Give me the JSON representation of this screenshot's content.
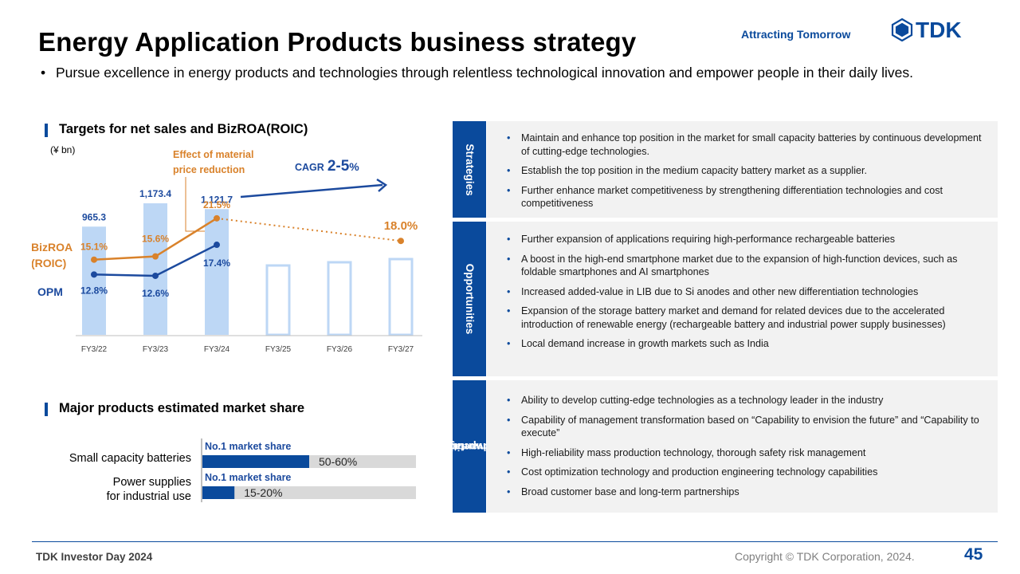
{
  "header": {
    "title": "Energy Application Products business strategy",
    "tagline": "Attracting Tomorrow",
    "logo_text": "TDK",
    "subtitle": "Pursue excellence in energy products and technologies through relentless technological innovation and empower people in their daily lives."
  },
  "colors": {
    "brand": "#0a4a9c",
    "bar_fill": "#bdd7f5",
    "bar_outline": "#bdd7f5",
    "roic_line": "#d9822b",
    "opm_line": "#1c4a9e",
    "panel_bg": "#f2f2f2",
    "share_track": "#d9d9d9"
  },
  "targets_section": {
    "heading": "Targets for net sales and BizROA(ROIC)",
    "unit": "(¥ bn)",
    "note_material": "Effect of material price reduction",
    "cagr_prefix": "CAGR",
    "cagr_value": "2-5",
    "cagr_suffix": "%",
    "roic_label": "BizROA (ROIC)",
    "opm_label": "OPM"
  },
  "chart_data": {
    "type": "bar",
    "categories": [
      "FY3/22",
      "FY3/23",
      "FY3/24",
      "FY3/25",
      "FY3/26",
      "FY3/27"
    ],
    "series": [
      {
        "name": "Net sales",
        "values": [
          965.3,
          1173.4,
          1121.7,
          null,
          null,
          null
        ],
        "labels": [
          "965.3",
          "1,173.4",
          "1,121.7",
          "",
          "",
          ""
        ],
        "target_outline": [
          false,
          false,
          false,
          true,
          true,
          true
        ]
      },
      {
        "name": "BizROA (ROIC)",
        "values": [
          15.1,
          15.6,
          21.5,
          null,
          null,
          18.0
        ],
        "labels": [
          "15.1%",
          "15.6%",
          "21.5%",
          "",
          "",
          "18.0%"
        ]
      },
      {
        "name": "OPM",
        "values": [
          12.8,
          12.6,
          17.4,
          null,
          null,
          null
        ],
        "labels": [
          "12.8%",
          "12.6%",
          "17.4%",
          "",
          "",
          ""
        ]
      }
    ],
    "forecast_bars": "FY3/25–FY3/27 outlined (target)",
    "grid": false
  },
  "market_share_section": {
    "heading": "Major products estimated market share",
    "items": [
      {
        "label_line1": "Small capacity batteries",
        "label_line2": "",
        "badge": "No.1 market share",
        "range": "50-60%",
        "share_min": 0.5,
        "share_max": 0.6
      },
      {
        "label_line1": "Power supplies",
        "label_line2": "for industrial use",
        "badge": "No.1 market share",
        "range": "15-20%",
        "share_min": 0.15,
        "share_max": 0.2
      }
    ]
  },
  "panels": [
    {
      "tab": "Strategies",
      "items": [
        "Maintain and enhance top position in the market for small capacity batteries by continuous development of cutting-edge technologies.",
        "Establish the top position in the medium capacity battery market as a supplier.",
        "Further enhance market competitiveness by strengthening differentiation technologies and cost competitiveness"
      ]
    },
    {
      "tab": "Opportunities",
      "items": [
        "Further expansion of applications requiring high-performance rechargeable batteries",
        "A boost in the high-end smartphone market due to the expansion of high-function devices, such as foldable smartphones and AI smartphones",
        "Increased added-value in LIB due to Si anodes and other new differentiation technologies",
        "Expansion of the storage battery market and demand for related devices due to the accelerated introduction of renewable energy (rechargeable battery and industrial power supply businesses)",
        "Local demand increase in growth markets such as India"
      ]
    },
    {
      "tab_line1": "Competitive",
      "tab_line2": "advantage",
      "items": [
        "Ability to develop cutting-edge technologies as a technology leader in the industry",
        "Capability of management transformation based on “Capability to envision the future” and “Capability to execute”",
        "High-reliability mass production technology, thorough safety risk management",
        "Cost optimization technology and production engineering technology capabilities",
        "Broad customer base and long-term partnerships"
      ]
    }
  ],
  "footer": {
    "event": "TDK Investor Day 2024",
    "copyright": "Copyright © TDK Corporation, 2024.",
    "page": "45"
  }
}
